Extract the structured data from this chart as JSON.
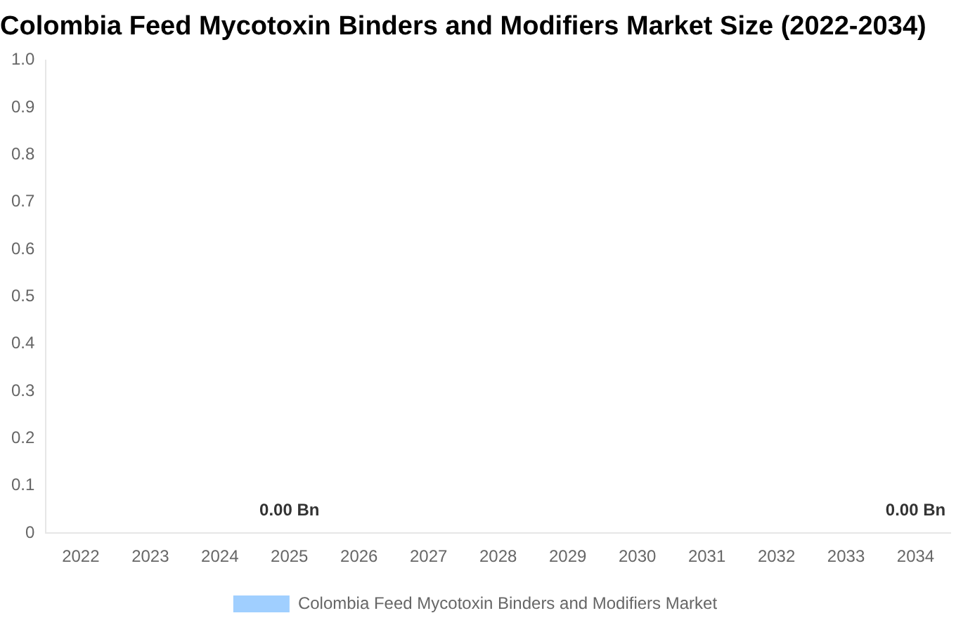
{
  "chart_data": {
    "type": "bar",
    "title": "Colombia Feed Mycotoxin Binders and Modifiers Market Size (2022-2034)",
    "categories": [
      "2022",
      "2023",
      "2024",
      "2025",
      "2026",
      "2027",
      "2028",
      "2029",
      "2030",
      "2031",
      "2032",
      "2033",
      "2034"
    ],
    "series": [
      {
        "name": "Colombia Feed Mycotoxin Binders and Modifiers Market",
        "color": "#a0cfff",
        "values": [
          0,
          0,
          0,
          0,
          0,
          0,
          0,
          0,
          0,
          0,
          0,
          0,
          0
        ],
        "value_labels": [
          null,
          null,
          null,
          "0.00 Bn",
          null,
          null,
          null,
          null,
          null,
          null,
          null,
          null,
          "0.00 Bn"
        ]
      }
    ],
    "ylim": [
      0,
      1
    ],
    "yticks": [
      0,
      0.1,
      0.2,
      0.3,
      0.4,
      0.5,
      0.6,
      0.7,
      0.8,
      0.9,
      {
        "value": 1,
        "label": "1.0"
      }
    ],
    "grid": false,
    "legend": "bottom"
  }
}
